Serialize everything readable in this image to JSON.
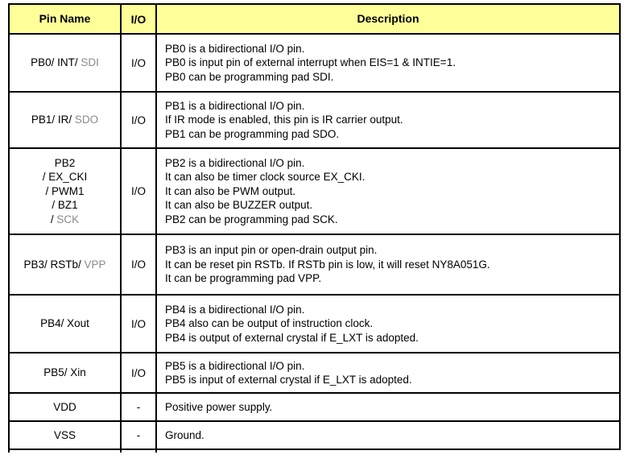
{
  "colors": {
    "header_bg": "#FFFF99",
    "border": "#000000",
    "text": "#000000",
    "gray_text": "#8A8A8A"
  },
  "table": {
    "header": {
      "pin": "Pin Name",
      "io": "I/O",
      "desc": "Description"
    },
    "rows": [
      {
        "pin_lines": [
          [
            {
              "t": "PB0/ INT/ ",
              "g": false
            },
            {
              "t": "SDI",
              "g": true
            }
          ]
        ],
        "io": "I/O",
        "desc_lines": [
          "PB0 is a bidirectional I/O pin.",
          "PB0 is input pin of external interrupt when EIS=1 & INTIE=1.",
          "PB0 can be programming pad SDI."
        ]
      },
      {
        "pin_lines": [
          [
            {
              "t": "PB1/ IR/ ",
              "g": false
            },
            {
              "t": "SDO",
              "g": true
            }
          ]
        ],
        "io": "I/O",
        "desc_lines": [
          "PB1 is a bidirectional I/O pin.",
          "If IR mode is enabled, this pin is IR carrier output.",
          "PB1 can be programming pad SDO."
        ]
      },
      {
        "pin_lines": [
          [
            {
              "t": "PB2",
              "g": false
            }
          ],
          [
            {
              "t": "/ EX_CKI",
              "g": false
            }
          ],
          [
            {
              "t": "/ PWM1",
              "g": false
            }
          ],
          [
            {
              "t": "/ BZ1",
              "g": false
            }
          ],
          [
            {
              "t": "/ ",
              "g": false
            },
            {
              "t": "SCK",
              "g": true
            }
          ]
        ],
        "io": "I/O",
        "desc_lines": [
          "PB2 is a bidirectional I/O pin.",
          "It can also be timer clock source EX_CKI.",
          "It can also be PWM output.",
          "It can also be BUZZER output.",
          "PB2 can be programming pad SCK."
        ]
      },
      {
        "pin_lines": [
          [
            {
              "t": "PB3/ RSTb/ ",
              "g": false
            },
            {
              "t": "VPP",
              "g": true
            }
          ]
        ],
        "io": "I/O",
        "desc_lines": [
          "PB3 is an input pin or open-drain output pin.",
          "It can be reset pin RSTb. If RSTb pin is low, it will reset NY8A051G.",
          "It can be programming pad VPP."
        ]
      },
      {
        "pin_lines": [
          [
            {
              "t": "PB4/ Xout",
              "g": false
            }
          ]
        ],
        "io": "I/O",
        "desc_lines": [
          "PB4 is a bidirectional I/O pin.",
          "PB4 also can be output of instruction clock.",
          "PB4 is output of external crystal if E_LXT is adopted."
        ]
      },
      {
        "pin_lines": [
          [
            {
              "t": "PB5/ Xin",
              "g": false
            }
          ]
        ],
        "io": "I/O",
        "desc_lines": [
          "PB5 is a bidirectional I/O pin.",
          "PB5 is input of external crystal if E_LXT is adopted."
        ]
      },
      {
        "pin_lines": [
          [
            {
              "t": "VDD",
              "g": false
            }
          ]
        ],
        "io": "-",
        "desc_lines": [
          "Positive power supply."
        ]
      },
      {
        "pin_lines": [
          [
            {
              "t": "VSS",
              "g": false
            }
          ]
        ],
        "io": "-",
        "desc_lines": [
          "Ground."
        ]
      }
    ]
  }
}
